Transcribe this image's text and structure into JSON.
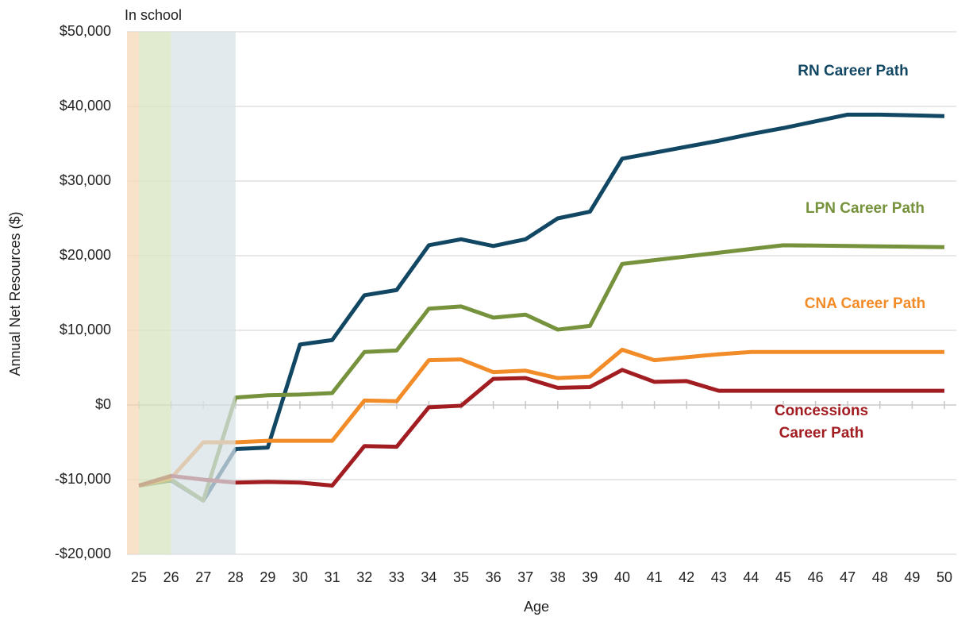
{
  "chart_data": {
    "type": "line",
    "annotation": "In school",
    "xlabel": "Age",
    "ylabel": "Annual Net Resources ($)",
    "x": [
      25,
      26,
      27,
      28,
      29,
      30,
      31,
      32,
      33,
      34,
      35,
      36,
      37,
      38,
      39,
      40,
      41,
      42,
      43,
      44,
      45,
      46,
      47,
      48,
      49,
      50
    ],
    "xlim": [
      24.63,
      50.37
    ],
    "xticks": [
      25,
      26,
      27,
      28,
      29,
      30,
      31,
      32,
      33,
      34,
      35,
      36,
      37,
      38,
      39,
      40,
      41,
      42,
      43,
      44,
      45,
      46,
      47,
      48,
      49,
      50
    ],
    "ylim": [
      -20000,
      50000
    ],
    "yticks": [
      {
        "value": -20000,
        "label": "-$20,000"
      },
      {
        "value": -10000,
        "label": "-$10,000"
      },
      {
        "value": 0,
        "label": "$0"
      },
      {
        "value": 10000,
        "label": "$10,000"
      },
      {
        "value": 20000,
        "label": "$20,000"
      },
      {
        "value": 30000,
        "label": "$30,000"
      },
      {
        "value": 40000,
        "label": "$40,000"
      },
      {
        "value": 50000,
        "label": "$50,000"
      }
    ],
    "grid": true,
    "bands": [
      {
        "from": 24.63,
        "to": 25,
        "color": "#f7d7b5"
      },
      {
        "from": 25,
        "to": 26,
        "color": "#d6e3bd"
      },
      {
        "from": 26,
        "to": 28,
        "color": "#d7e2e8"
      }
    ],
    "series": [
      {
        "name": "RN Career Path",
        "color": "#124764",
        "values": [
          -10800,
          -10100,
          -12800,
          -5900,
          -5700,
          8100,
          8700,
          14700,
          15400,
          21400,
          22200,
          21300,
          22200,
          25000,
          25900,
          33000,
          33800,
          34600,
          35400,
          36300,
          37100,
          38000,
          38900,
          38900,
          38800,
          38700
        ]
      },
      {
        "name": "LPN Career Path",
        "color": "#76923c",
        "values": [
          -10800,
          -10000,
          -12800,
          1000,
          1300,
          1400,
          1600,
          7100,
          7300,
          12900,
          13200,
          11700,
          12100,
          10100,
          10600,
          18900,
          19400,
          19900,
          20400,
          20900,
          21400,
          21350,
          21300,
          21250,
          21200,
          21150
        ]
      },
      {
        "name": "CNA Career Path",
        "color": "#f28c28",
        "values": [
          -10800,
          -9800,
          -5000,
          -5000,
          -4800,
          -4800,
          -4800,
          600,
          500,
          6000,
          6100,
          4400,
          4600,
          3600,
          3800,
          7400,
          6000,
          6400,
          6800,
          7100,
          7100,
          7100,
          7100,
          7100,
          7100,
          7100
        ]
      },
      {
        "name": "Concessions Career Path",
        "color": "#a21d21",
        "values": [
          -10800,
          -9500,
          -10000,
          -10400,
          -10300,
          -10400,
          -10800,
          -5500,
          -5600,
          -300,
          -100,
          3500,
          3600,
          2300,
          2400,
          4700,
          3100,
          3200,
          1900,
          1900,
          1900,
          1900,
          1900,
          1900,
          1900,
          1900
        ]
      }
    ]
  }
}
